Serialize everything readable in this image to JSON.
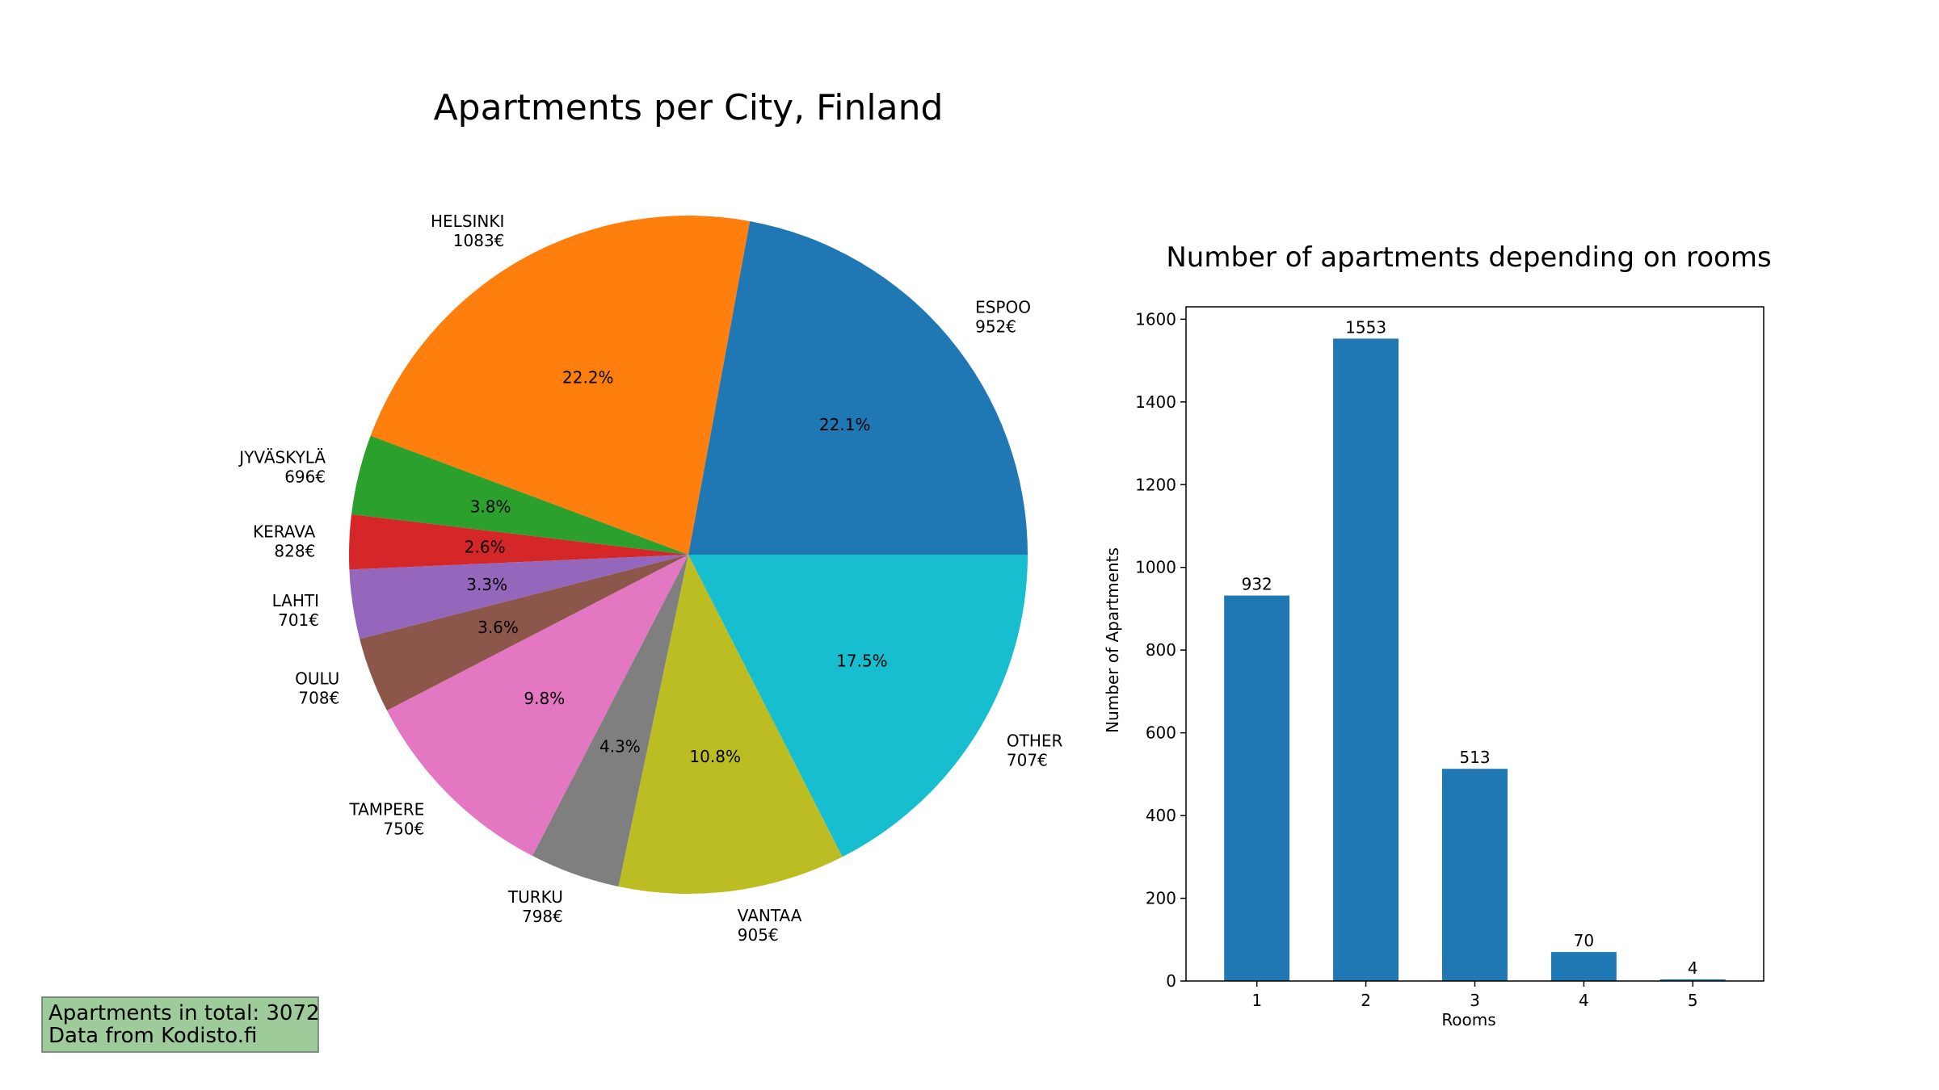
{
  "chart_data": [
    {
      "type": "pie",
      "title": "Apartments per City, Finland",
      "slices": [
        {
          "city": "ESPOO",
          "price": "952€",
          "percent": 22.1,
          "pct_label": "22.1%",
          "color": "#1f77b4"
        },
        {
          "city": "HELSINKI",
          "price": "1083€",
          "percent": 22.2,
          "pct_label": "22.2%",
          "color": "#ff7f0e"
        },
        {
          "city": "JYVÄSKYLÄ",
          "price": "696€",
          "percent": 3.8,
          "pct_label": "3.8%",
          "color": "#2ca02c"
        },
        {
          "city": "KERAVA",
          "price": "828€",
          "percent": 2.6,
          "pct_label": "2.6%",
          "color": "#d62728"
        },
        {
          "city": "LAHTI",
          "price": "701€",
          "percent": 3.3,
          "pct_label": "3.3%",
          "color": "#9467bd"
        },
        {
          "city": "OULU",
          "price": "708€",
          "percent": 3.6,
          "pct_label": "3.6%",
          "color": "#8c564b"
        },
        {
          "city": "TAMPERE",
          "price": "750€",
          "percent": 9.8,
          "pct_label": "9.8%",
          "color": "#e377c2"
        },
        {
          "city": "TURKU",
          "price": "798€",
          "percent": 4.3,
          "pct_label": "4.3%",
          "color": "#7f7f7f"
        },
        {
          "city": "VANTAA",
          "price": "905€",
          "percent": 10.8,
          "pct_label": "10.8%",
          "color": "#bcbd22"
        },
        {
          "city": "OTHER",
          "price": "707€",
          "percent": 17.5,
          "pct_label": "17.5%",
          "color": "#17becf"
        }
      ],
      "start_angle": "0° (east), counter-clockwise"
    },
    {
      "type": "bar",
      "title": "Number of apartments depending on rooms",
      "xlabel": "Rooms",
      "ylabel": "Number of Apartments",
      "categories": [
        "1",
        "2",
        "3",
        "4",
        "5"
      ],
      "values": [
        932,
        1553,
        513,
        70,
        4
      ],
      "ylim": [
        0,
        1630
      ],
      "yticks": [
        0,
        200,
        400,
        600,
        800,
        1000,
        1200,
        1400,
        1600
      ],
      "bar_color": "#1f77b4",
      "grid": false
    }
  ],
  "info_box": {
    "line1": "Apartments in total: 3072",
    "line2": "Data from Kodisto.fi",
    "background": "#9dcb9a"
  }
}
